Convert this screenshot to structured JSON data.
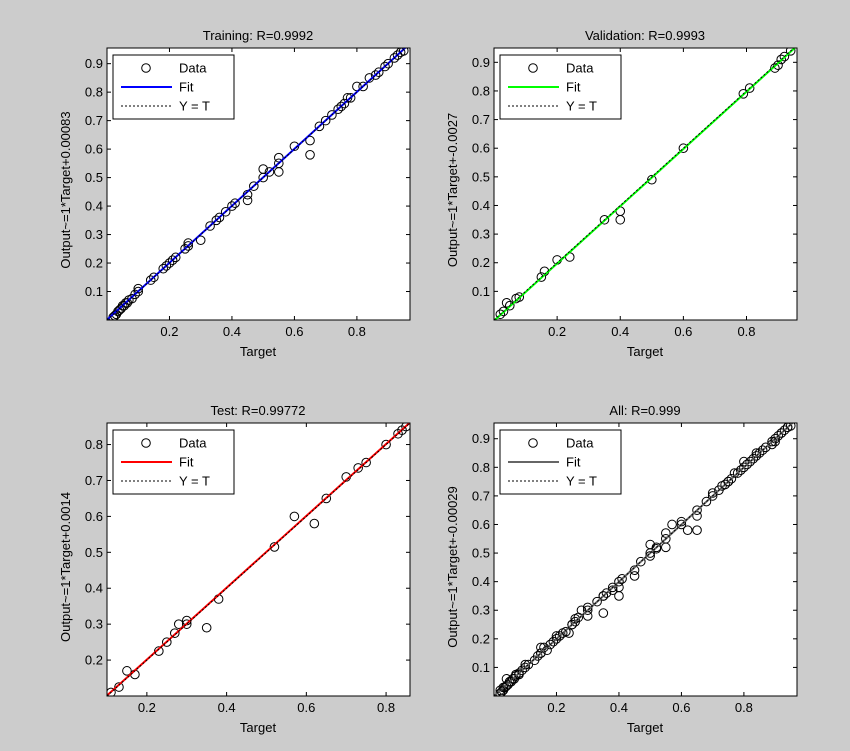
{
  "figure": {
    "background": "#cccccc"
  },
  "chart_data": [
    {
      "type": "scatter",
      "title": "Training: R=0.9992",
      "xlabel": "Target",
      "ylabel": "Output~=1*Target+0.00083",
      "xlim": [
        0.0,
        0.97
      ],
      "ylim": [
        0.0,
        0.955
      ],
      "xticks": [
        0.2,
        0.4,
        0.6,
        0.8
      ],
      "yticks": [
        0.1,
        0.2,
        0.3,
        0.4,
        0.5,
        0.6,
        0.7,
        0.8,
        0.9
      ],
      "fit": {
        "slope": 1,
        "intercept": 0.00083,
        "color": "#0000ff"
      },
      "legend": {
        "position": "top-left",
        "entries": [
          {
            "label": "Data",
            "marker": "circle",
            "color": "#000000"
          },
          {
            "label": "Fit",
            "style": "solid",
            "color": "#0000ff"
          },
          {
            "label": "Y = T",
            "style": "dotted",
            "color": "#000000"
          }
        ]
      },
      "series": [
        {
          "name": "Data",
          "points": [
            [
              0.02,
              0.01
            ],
            [
              0.025,
              0.015
            ],
            [
              0.03,
              0.02
            ],
            [
              0.035,
              0.03
            ],
            [
              0.04,
              0.035
            ],
            [
              0.045,
              0.04
            ],
            [
              0.05,
              0.05
            ],
            [
              0.055,
              0.05
            ],
            [
              0.06,
              0.06
            ],
            [
              0.065,
              0.06
            ],
            [
              0.07,
              0.07
            ],
            [
              0.08,
              0.075
            ],
            [
              0.09,
              0.09
            ],
            [
              0.1,
              0.1
            ],
            [
              0.1,
              0.11
            ],
            [
              0.14,
              0.14
            ],
            [
              0.15,
              0.15
            ],
            [
              0.18,
              0.18
            ],
            [
              0.19,
              0.19
            ],
            [
              0.2,
              0.2
            ],
            [
              0.21,
              0.21
            ],
            [
              0.22,
              0.22
            ],
            [
              0.25,
              0.25
            ],
            [
              0.26,
              0.26
            ],
            [
              0.26,
              0.27
            ],
            [
              0.3,
              0.28
            ],
            [
              0.33,
              0.33
            ],
            [
              0.35,
              0.35
            ],
            [
              0.36,
              0.36
            ],
            [
              0.38,
              0.38
            ],
            [
              0.4,
              0.4
            ],
            [
              0.41,
              0.41
            ],
            [
              0.45,
              0.44
            ],
            [
              0.45,
              0.42
            ],
            [
              0.47,
              0.47
            ],
            [
              0.5,
              0.5
            ],
            [
              0.5,
              0.53
            ],
            [
              0.52,
              0.52
            ],
            [
              0.55,
              0.55
            ],
            [
              0.55,
              0.57
            ],
            [
              0.55,
              0.52
            ],
            [
              0.6,
              0.61
            ],
            [
              0.65,
              0.58
            ],
            [
              0.65,
              0.63
            ],
            [
              0.68,
              0.68
            ],
            [
              0.7,
              0.7
            ],
            [
              0.72,
              0.72
            ],
            [
              0.74,
              0.74
            ],
            [
              0.75,
              0.75
            ],
            [
              0.76,
              0.76
            ],
            [
              0.77,
              0.78
            ],
            [
              0.78,
              0.78
            ],
            [
              0.8,
              0.82
            ],
            [
              0.82,
              0.82
            ],
            [
              0.84,
              0.85
            ],
            [
              0.86,
              0.86
            ],
            [
              0.87,
              0.87
            ],
            [
              0.89,
              0.89
            ],
            [
              0.9,
              0.9
            ],
            [
              0.92,
              0.92
            ],
            [
              0.93,
              0.93
            ],
            [
              0.94,
              0.94
            ],
            [
              0.95,
              0.945
            ]
          ]
        }
      ]
    },
    {
      "type": "scatter",
      "title": "Validation: R=0.9993",
      "xlabel": "Target",
      "ylabel": "Output~=1*Target+-0.0027",
      "xlim": [
        0.0,
        0.96
      ],
      "ylim": [
        0.0,
        0.95
      ],
      "xticks": [
        0.2,
        0.4,
        0.6,
        0.8
      ],
      "yticks": [
        0.1,
        0.2,
        0.3,
        0.4,
        0.5,
        0.6,
        0.7,
        0.8,
        0.9
      ],
      "fit": {
        "slope": 1,
        "intercept": -0.0027,
        "color": "#00ff00"
      },
      "legend": {
        "position": "top-left",
        "entries": [
          {
            "label": "Data",
            "marker": "circle",
            "color": "#000000"
          },
          {
            "label": "Fit",
            "style": "solid",
            "color": "#00ff00"
          },
          {
            "label": "Y = T",
            "style": "dotted",
            "color": "#000000"
          }
        ]
      },
      "series": [
        {
          "name": "Data",
          "points": [
            [
              0.02,
              0.02
            ],
            [
              0.03,
              0.03
            ],
            [
              0.04,
              0.06
            ],
            [
              0.05,
              0.05
            ],
            [
              0.07,
              0.075
            ],
            [
              0.08,
              0.08
            ],
            [
              0.15,
              0.15
            ],
            [
              0.16,
              0.17
            ],
            [
              0.2,
              0.21
            ],
            [
              0.24,
              0.22
            ],
            [
              0.35,
              0.35
            ],
            [
              0.4,
              0.35
            ],
            [
              0.4,
              0.38
            ],
            [
              0.5,
              0.49
            ],
            [
              0.6,
              0.6
            ],
            [
              0.79,
              0.79
            ],
            [
              0.81,
              0.81
            ],
            [
              0.89,
              0.88
            ],
            [
              0.9,
              0.89
            ],
            [
              0.91,
              0.91
            ],
            [
              0.92,
              0.92
            ],
            [
              0.94,
              0.94
            ]
          ]
        }
      ]
    },
    {
      "type": "scatter",
      "title": "Test: R=0.99772",
      "xlabel": "Target",
      "ylabel": "Output~=1*Target+0.0014",
      "xlim": [
        0.1,
        0.86
      ],
      "ylim": [
        0.1,
        0.86
      ],
      "xticks": [
        0.2,
        0.4,
        0.6,
        0.8
      ],
      "yticks": [
        0.2,
        0.3,
        0.4,
        0.5,
        0.6,
        0.7,
        0.8
      ],
      "fit": {
        "slope": 1,
        "intercept": 0.0014,
        "color": "#ff0000"
      },
      "legend": {
        "position": "top-left",
        "entries": [
          {
            "label": "Data",
            "marker": "circle",
            "color": "#000000"
          },
          {
            "label": "Fit",
            "style": "solid",
            "color": "#ff0000"
          },
          {
            "label": "Y = T",
            "style": "dotted",
            "color": "#000000"
          }
        ]
      },
      "series": [
        {
          "name": "Data",
          "points": [
            [
              0.11,
              0.11
            ],
            [
              0.13,
              0.125
            ],
            [
              0.15,
              0.17
            ],
            [
              0.17,
              0.16
            ],
            [
              0.23,
              0.225
            ],
            [
              0.25,
              0.25
            ],
            [
              0.27,
              0.275
            ],
            [
              0.28,
              0.3
            ],
            [
              0.3,
              0.31
            ],
            [
              0.3,
              0.3
            ],
            [
              0.35,
              0.29
            ],
            [
              0.38,
              0.37
            ],
            [
              0.52,
              0.515
            ],
            [
              0.57,
              0.6
            ],
            [
              0.62,
              0.58
            ],
            [
              0.65,
              0.65
            ],
            [
              0.7,
              0.71
            ],
            [
              0.73,
              0.735
            ],
            [
              0.75,
              0.75
            ],
            [
              0.8,
              0.8
            ],
            [
              0.83,
              0.83
            ],
            [
              0.84,
              0.84
            ],
            [
              0.85,
              0.85
            ]
          ]
        }
      ]
    },
    {
      "type": "scatter",
      "title": "All: R=0.999",
      "xlabel": "Target",
      "ylabel": "Output~=1*Target+-0.00029",
      "xlim": [
        0.0,
        0.97
      ],
      "ylim": [
        0.0,
        0.955
      ],
      "xticks": [
        0.2,
        0.4,
        0.6,
        0.8
      ],
      "yticks": [
        0.1,
        0.2,
        0.3,
        0.4,
        0.5,
        0.6,
        0.7,
        0.8,
        0.9
      ],
      "fit": {
        "slope": 1,
        "intercept": -0.00029,
        "color": "#666666"
      },
      "legend": {
        "position": "top-left",
        "entries": [
          {
            "label": "Data",
            "marker": "circle",
            "color": "#000000"
          },
          {
            "label": "Fit",
            "style": "solid",
            "color": "#666666"
          },
          {
            "label": "Y = T",
            "style": "dotted",
            "color": "#000000"
          }
        ]
      },
      "series": [
        {
          "name": "Data",
          "points": [
            [
              0.02,
              0.01
            ],
            [
              0.025,
              0.015
            ],
            [
              0.03,
              0.02
            ],
            [
              0.035,
              0.03
            ],
            [
              0.04,
              0.035
            ],
            [
              0.045,
              0.04
            ],
            [
              0.05,
              0.05
            ],
            [
              0.055,
              0.05
            ],
            [
              0.06,
              0.06
            ],
            [
              0.065,
              0.06
            ],
            [
              0.07,
              0.07
            ],
            [
              0.08,
              0.075
            ],
            [
              0.09,
              0.09
            ],
            [
              0.1,
              0.1
            ],
            [
              0.1,
              0.11
            ],
            [
              0.14,
              0.14
            ],
            [
              0.15,
              0.15
            ],
            [
              0.18,
              0.18
            ],
            [
              0.19,
              0.19
            ],
            [
              0.2,
              0.2
            ],
            [
              0.21,
              0.21
            ],
            [
              0.22,
              0.22
            ],
            [
              0.25,
              0.25
            ],
            [
              0.26,
              0.26
            ],
            [
              0.26,
              0.27
            ],
            [
              0.3,
              0.28
            ],
            [
              0.33,
              0.33
            ],
            [
              0.35,
              0.35
            ],
            [
              0.36,
              0.36
            ],
            [
              0.38,
              0.38
            ],
            [
              0.4,
              0.4
            ],
            [
              0.41,
              0.41
            ],
            [
              0.45,
              0.44
            ],
            [
              0.45,
              0.42
            ],
            [
              0.47,
              0.47
            ],
            [
              0.5,
              0.5
            ],
            [
              0.5,
              0.53
            ],
            [
              0.52,
              0.52
            ],
            [
              0.55,
              0.55
            ],
            [
              0.55,
              0.57
            ],
            [
              0.55,
              0.52
            ],
            [
              0.6,
              0.61
            ],
            [
              0.65,
              0.58
            ],
            [
              0.65,
              0.63
            ],
            [
              0.68,
              0.68
            ],
            [
              0.7,
              0.7
            ],
            [
              0.72,
              0.72
            ],
            [
              0.74,
              0.74
            ],
            [
              0.75,
              0.75
            ],
            [
              0.76,
              0.76
            ],
            [
              0.77,
              0.78
            ],
            [
              0.78,
              0.78
            ],
            [
              0.8,
              0.82
            ],
            [
              0.82,
              0.82
            ],
            [
              0.84,
              0.85
            ],
            [
              0.86,
              0.86
            ],
            [
              0.87,
              0.87
            ],
            [
              0.89,
              0.89
            ],
            [
              0.9,
              0.9
            ],
            [
              0.92,
              0.92
            ],
            [
              0.93,
              0.93
            ],
            [
              0.94,
              0.94
            ],
            [
              0.95,
              0.945
            ],
            [
              0.02,
              0.02
            ],
            [
              0.03,
              0.03
            ],
            [
              0.04,
              0.06
            ],
            [
              0.05,
              0.05
            ],
            [
              0.07,
              0.075
            ],
            [
              0.08,
              0.08
            ],
            [
              0.15,
              0.15
            ],
            [
              0.16,
              0.17
            ],
            [
              0.2,
              0.21
            ],
            [
              0.24,
              0.22
            ],
            [
              0.35,
              0.35
            ],
            [
              0.4,
              0.35
            ],
            [
              0.4,
              0.38
            ],
            [
              0.5,
              0.49
            ],
            [
              0.6,
              0.6
            ],
            [
              0.79,
              0.79
            ],
            [
              0.81,
              0.81
            ],
            [
              0.89,
              0.88
            ],
            [
              0.9,
              0.89
            ],
            [
              0.91,
              0.91
            ],
            [
              0.92,
              0.92
            ],
            [
              0.94,
              0.94
            ],
            [
              0.11,
              0.11
            ],
            [
              0.13,
              0.125
            ],
            [
              0.15,
              0.17
            ],
            [
              0.17,
              0.16
            ],
            [
              0.23,
              0.225
            ],
            [
              0.25,
              0.25
            ],
            [
              0.27,
              0.275
            ],
            [
              0.28,
              0.3
            ],
            [
              0.3,
              0.31
            ],
            [
              0.3,
              0.3
            ],
            [
              0.35,
              0.29
            ],
            [
              0.38,
              0.37
            ],
            [
              0.52,
              0.515
            ],
            [
              0.57,
              0.6
            ],
            [
              0.62,
              0.58
            ],
            [
              0.65,
              0.65
            ],
            [
              0.7,
              0.71
            ],
            [
              0.73,
              0.735
            ],
            [
              0.75,
              0.75
            ],
            [
              0.8,
              0.8
            ],
            [
              0.83,
              0.83
            ],
            [
              0.84,
              0.84
            ],
            [
              0.85,
              0.85
            ]
          ]
        }
      ]
    }
  ]
}
